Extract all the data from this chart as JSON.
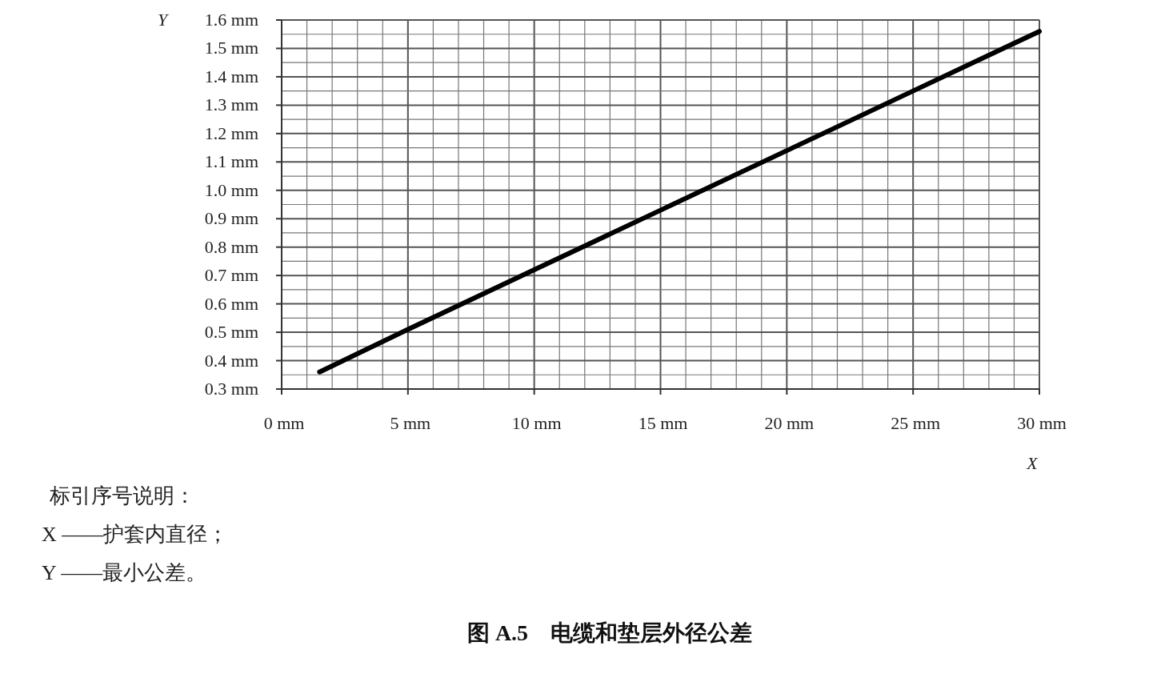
{
  "chart_data": {
    "type": "line",
    "title": "图 A.5　电缆和垫层外径公差",
    "xlabel": "X",
    "ylabel": "Y",
    "x": [
      1.5,
      5,
      10,
      15,
      20,
      25,
      30
    ],
    "series": [
      {
        "color": "#000000",
        "values": [
          0.36,
          0.51,
          0.72,
          0.93,
          1.14,
          1.35,
          1.56
        ]
      }
    ],
    "xlim": [
      0,
      30
    ],
    "ylim": [
      0.3,
      1.6
    ],
    "xticks": [
      {
        "value": 0,
        "label": "0 mm"
      },
      {
        "value": 5,
        "label": "5 mm"
      },
      {
        "value": 10,
        "label": "10 mm"
      },
      {
        "value": 15,
        "label": "15 mm"
      },
      {
        "value": 20,
        "label": "20 mm"
      },
      {
        "value": 25,
        "label": "25 mm"
      },
      {
        "value": 30,
        "label": "30 mm"
      }
    ],
    "yticks": [
      {
        "value": 0.3,
        "label": "0.3 mm"
      },
      {
        "value": 0.4,
        "label": "0.4 mm"
      },
      {
        "value": 0.5,
        "label": "0.5 mm"
      },
      {
        "value": 0.6,
        "label": "0.6 mm"
      },
      {
        "value": 0.7,
        "label": "0.7 mm"
      },
      {
        "value": 0.8,
        "label": "0.8 mm"
      },
      {
        "value": 0.9,
        "label": "0.9 mm"
      },
      {
        "value": 1.0,
        "label": "1.0 mm"
      },
      {
        "value": 1.1,
        "label": "1.1 mm"
      },
      {
        "value": 1.2,
        "label": "1.2 mm"
      },
      {
        "value": 1.3,
        "label": "1.3 mm"
      },
      {
        "value": 1.4,
        "label": "1.4 mm"
      },
      {
        "value": 1.5,
        "label": "1.5 mm"
      },
      {
        "value": 1.6,
        "label": "1.6 mm"
      }
    ],
    "grid": true,
    "annotations": [
      "标引序号说明：",
      "X ——护套内直径；",
      "Y ——最小公差。"
    ]
  }
}
